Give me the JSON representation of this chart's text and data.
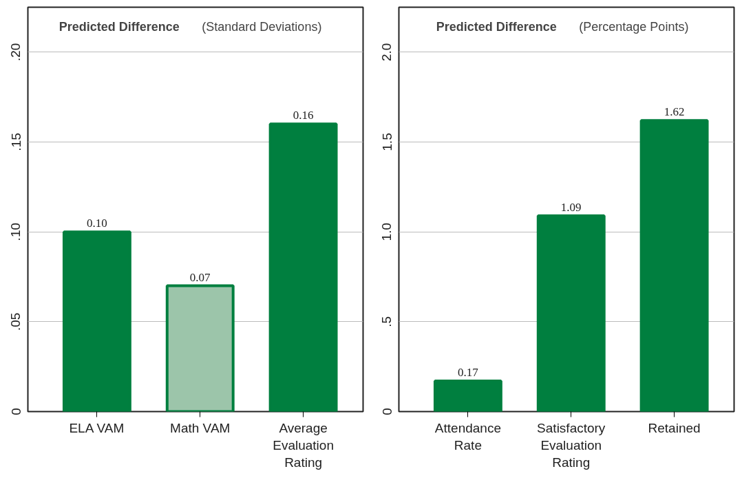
{
  "chart_data": [
    {
      "type": "bar",
      "title": "Predicted Difference (Standard Deviations)",
      "categories": [
        "ELA VAM",
        "Math VAM",
        "Average Evaluation Rating"
      ],
      "values": [
        0.1,
        0.07,
        0.16
      ],
      "colors": [
        "#007f3f",
        "#9cc5aa",
        "#007f3f"
      ],
      "value_labels": [
        "0.10",
        "0.07",
        "0.16"
      ],
      "ylim": [
        0,
        0.225
      ],
      "yticks": [
        {
          "value": 0,
          "label": "0"
        },
        {
          "value": 0.05,
          "label": ".05"
        },
        {
          "value": 0.1,
          "label": ".10"
        },
        {
          "value": 0.15,
          "label": ".15"
        },
        {
          "value": 0.2,
          "label": ".20"
        }
      ],
      "grid": "y"
    },
    {
      "type": "bar",
      "title": "Predicted Difference (Percentage Points)",
      "categories": [
        "Attendance Rate",
        "Satisfactory Evaluation Rating",
        "Retained"
      ],
      "values": [
        0.17,
        1.09,
        1.62
      ],
      "colors": [
        "#007f3f",
        "#007f3f",
        "#007f3f"
      ],
      "value_labels": [
        "0.17",
        "1.09",
        "1.62"
      ],
      "ylim": [
        0,
        2.25
      ],
      "yticks": [
        0,
        {
          "value": 0.5,
          "label": ".5"
        },
        {
          "value": 1.0,
          "label": "1.0"
        },
        1.5,
        {
          "value": 2.0,
          "label": "2.0"
        }
      ],
      "grid": "y"
    }
  ]
}
